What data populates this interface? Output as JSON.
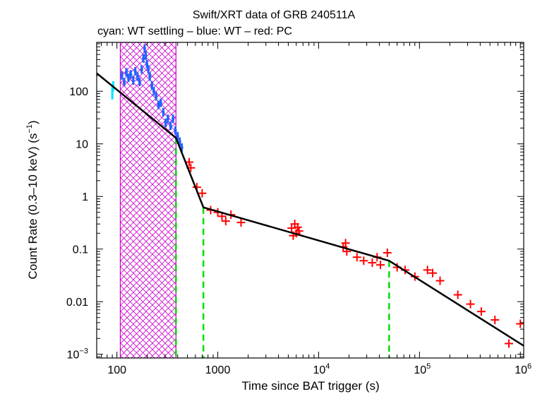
{
  "chart_data": {
    "type": "scatter",
    "title": "Swift/XRT data of GRB 240511A",
    "subtitle": "cyan: WT settling – blue: WT – red: PC",
    "xlabel": "Time since BAT trigger (s)",
    "ylabel_main": "Count Rate (0.3–10 keV) (s",
    "ylabel_sup": "−1",
    "ylabel_close": ")",
    "x_scale": "log",
    "y_scale": "log",
    "xlim": [
      63,
      1080000
    ],
    "ylim": [
      0.00085,
      850
    ],
    "x_ticks": [
      {
        "v": 100,
        "label": "100"
      },
      {
        "v": 1000,
        "label": "1000"
      },
      {
        "v": 10000,
        "base": "10",
        "exp": "4"
      },
      {
        "v": 100000,
        "base": "10",
        "exp": "5"
      },
      {
        "v": 1000000,
        "base": "10",
        "exp": "6"
      }
    ],
    "y_ticks": [
      {
        "v": 100,
        "label": "100"
      },
      {
        "v": 10,
        "label": "10"
      },
      {
        "v": 1,
        "label": "1"
      },
      {
        "v": 0.1,
        "label": "0.1"
      },
      {
        "v": 0.01,
        "label": "0.01"
      },
      {
        "v": 0.001,
        "base": "10",
        "exp": "−3"
      }
    ],
    "flare_region": {
      "x_start": 108,
      "x_end": 385,
      "color": "#cc00cc"
    },
    "colors": {
      "wt_settling": "#00e5ff",
      "wt": "#1e64ff",
      "pc": "#ff0000",
      "model": "#000000",
      "breaks": "#00dd00"
    },
    "breaks": [
      385,
      720,
      50000
    ],
    "model": {
      "x": [
        63,
        385,
        720,
        50000,
        1080000
      ],
      "y": [
        220,
        13,
        0.62,
        0.06,
        0.00145
      ]
    },
    "series": [
      {
        "name": "WT settling",
        "points": [
          {
            "x": 90,
            "y": 100,
            "ylo": 70,
            "yhi": 135
          },
          {
            "x": 92,
            "y": 125,
            "ylo": 100,
            "yhi": 155
          }
        ]
      },
      {
        "name": "WT",
        "points": [
          {
            "x": 112,
            "y": 200
          },
          {
            "x": 118,
            "y": 150
          },
          {
            "x": 124,
            "y": 230
          },
          {
            "x": 130,
            "y": 180
          },
          {
            "x": 137,
            "y": 210
          },
          {
            "x": 145,
            "y": 160
          },
          {
            "x": 152,
            "y": 240
          },
          {
            "x": 160,
            "y": 190
          },
          {
            "x": 168,
            "y": 150
          },
          {
            "x": 176,
            "y": 260
          },
          {
            "x": 183,
            "y": 420
          },
          {
            "x": 188,
            "y": 650
          },
          {
            "x": 193,
            "y": 480
          },
          {
            "x": 198,
            "y": 330
          },
          {
            "x": 205,
            "y": 260
          },
          {
            "x": 212,
            "y": 190
          },
          {
            "x": 222,
            "y": 130
          },
          {
            "x": 232,
            "y": 100
          },
          {
            "x": 245,
            "y": 80
          },
          {
            "x": 258,
            "y": 55
          },
          {
            "x": 272,
            "y": 60
          },
          {
            "x": 288,
            "y": 40
          },
          {
            "x": 304,
            "y": 25
          },
          {
            "x": 320,
            "y": 30
          },
          {
            "x": 340,
            "y": 22
          },
          {
            "x": 360,
            "y": 30
          },
          {
            "x": 380,
            "y": 18
          },
          {
            "x": 400,
            "y": 14
          },
          {
            "x": 420,
            "y": 11
          },
          {
            "x": 440,
            "y": 8.5
          }
        ]
      },
      {
        "name": "PC",
        "points": [
          {
            "x": 520,
            "y": 4.5
          },
          {
            "x": 540,
            "y": 3.5
          },
          {
            "x": 620,
            "y": 1.5
          },
          {
            "x": 700,
            "y": 1.15
          },
          {
            "x": 850,
            "y": 0.55
          },
          {
            "x": 1000,
            "y": 0.5
          },
          {
            "x": 1100,
            "y": 0.42
          },
          {
            "x": 1200,
            "y": 0.34
          },
          {
            "x": 1350,
            "y": 0.45
          },
          {
            "x": 1700,
            "y": 0.32
          },
          {
            "x": 5400,
            "y": 0.25
          },
          {
            "x": 5600,
            "y": 0.18
          },
          {
            "x": 5800,
            "y": 0.3
          },
          {
            "x": 6000,
            "y": 0.2
          },
          {
            "x": 6200,
            "y": 0.26
          },
          {
            "x": 6400,
            "y": 0.22
          },
          {
            "x": 17500,
            "y": 0.11
          },
          {
            "x": 18500,
            "y": 0.13
          },
          {
            "x": 19000,
            "y": 0.09
          },
          {
            "x": 24000,
            "y": 0.07
          },
          {
            "x": 28000,
            "y": 0.06
          },
          {
            "x": 34000,
            "y": 0.055
          },
          {
            "x": 38000,
            "y": 0.07
          },
          {
            "x": 41000,
            "y": 0.05
          },
          {
            "x": 48000,
            "y": 0.085
          },
          {
            "x": 60000,
            "y": 0.045
          },
          {
            "x": 72000,
            "y": 0.04
          },
          {
            "x": 90000,
            "y": 0.03
          },
          {
            "x": 120000,
            "y": 0.04
          },
          {
            "x": 135000,
            "y": 0.035
          },
          {
            "x": 160000,
            "y": 0.025
          },
          {
            "x": 240000,
            "y": 0.0135
          },
          {
            "x": 320000,
            "y": 0.009
          },
          {
            "x": 410000,
            "y": 0.0065
          },
          {
            "x": 560000,
            "y": 0.0045
          },
          {
            "x": 770000,
            "y": 0.0016
          },
          {
            "x": 1000000,
            "y": 0.0038
          }
        ]
      }
    ]
  }
}
